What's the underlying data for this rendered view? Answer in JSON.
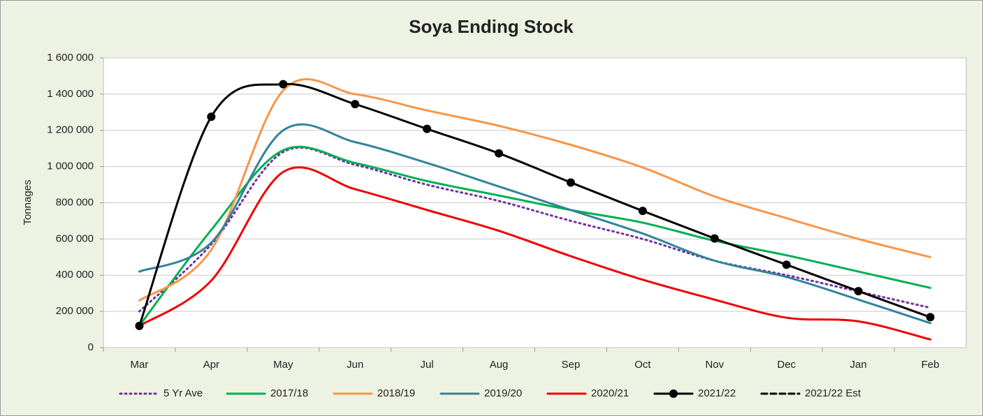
{
  "chart_data": {
    "type": "line",
    "title": "Soya Ending Stock",
    "y_label": "Tonnages",
    "categories": [
      "Mar",
      "Apr",
      "May",
      "Jun",
      "Jul",
      "Aug",
      "Sep",
      "Oct",
      "Nov",
      "Dec",
      "Jan",
      "Feb"
    ],
    "ylim": [
      0,
      1600000
    ],
    "yticks": [
      0,
      {
        "value": 200000,
        "label": "200 000"
      },
      {
        "value": 400000,
        "label": "400 000"
      },
      {
        "value": 600000,
        "label": "600 000"
      },
      {
        "value": 800000,
        "label": "800 000"
      },
      {
        "value": 1000000,
        "label": "1 000 000"
      },
      {
        "value": 1200000,
        "label": "1 200 000"
      },
      {
        "value": 1400000,
        "label": "1 400 000"
      },
      {
        "value": 1600000,
        "label": "1 600 000"
      }
    ],
    "grid": true,
    "legend": "bottom",
    "series": [
      {
        "name": "5 Yr Ave",
        "color": "#7030a0",
        "style": "dotted",
        "values": [
          200000,
          570000,
          1080000,
          1010000,
          900000,
          810000,
          700000,
          600000,
          480000,
          400000,
          310000,
          220000
        ]
      },
      {
        "name": "2017/18",
        "color": "#00b050",
        "style": "solid",
        "values": [
          120000,
          650000,
          1090000,
          1020000,
          920000,
          840000,
          760000,
          690000,
          590000,
          510000,
          420000,
          330000
        ]
      },
      {
        "name": "2018/19",
        "color": "#f79646",
        "style": "solid",
        "values": [
          260000,
          540000,
          1420000,
          1400000,
          1310000,
          1225000,
          1120000,
          995000,
          835000,
          715000,
          600000,
          500000
        ]
      },
      {
        "name": "2019/20",
        "color": "#31849b",
        "style": "solid",
        "values": [
          420000,
          580000,
          1200000,
          1135000,
          1020000,
          890000,
          760000,
          630000,
          480000,
          390000,
          265000,
          135000
        ]
      },
      {
        "name": "2020/21",
        "color": "#ee0000",
        "style": "solid",
        "values": [
          120000,
          370000,
          970000,
          875000,
          760000,
          645000,
          505000,
          375000,
          265000,
          165000,
          145000,
          45000
        ]
      },
      {
        "name": "2021/22",
        "color": "#000000",
        "style": "markers",
        "values": [
          120000,
          1275000,
          1455000,
          1345000,
          1208000,
          1073000,
          912000,
          755000,
          603000,
          458000,
          312000,
          168000
        ]
      },
      {
        "name": "2021/22 Est",
        "color": "#000000",
        "style": "dashed",
        "values": [
          null,
          null,
          null,
          null,
          null,
          null,
          null,
          null,
          null,
          null,
          null,
          null
        ]
      }
    ]
  }
}
